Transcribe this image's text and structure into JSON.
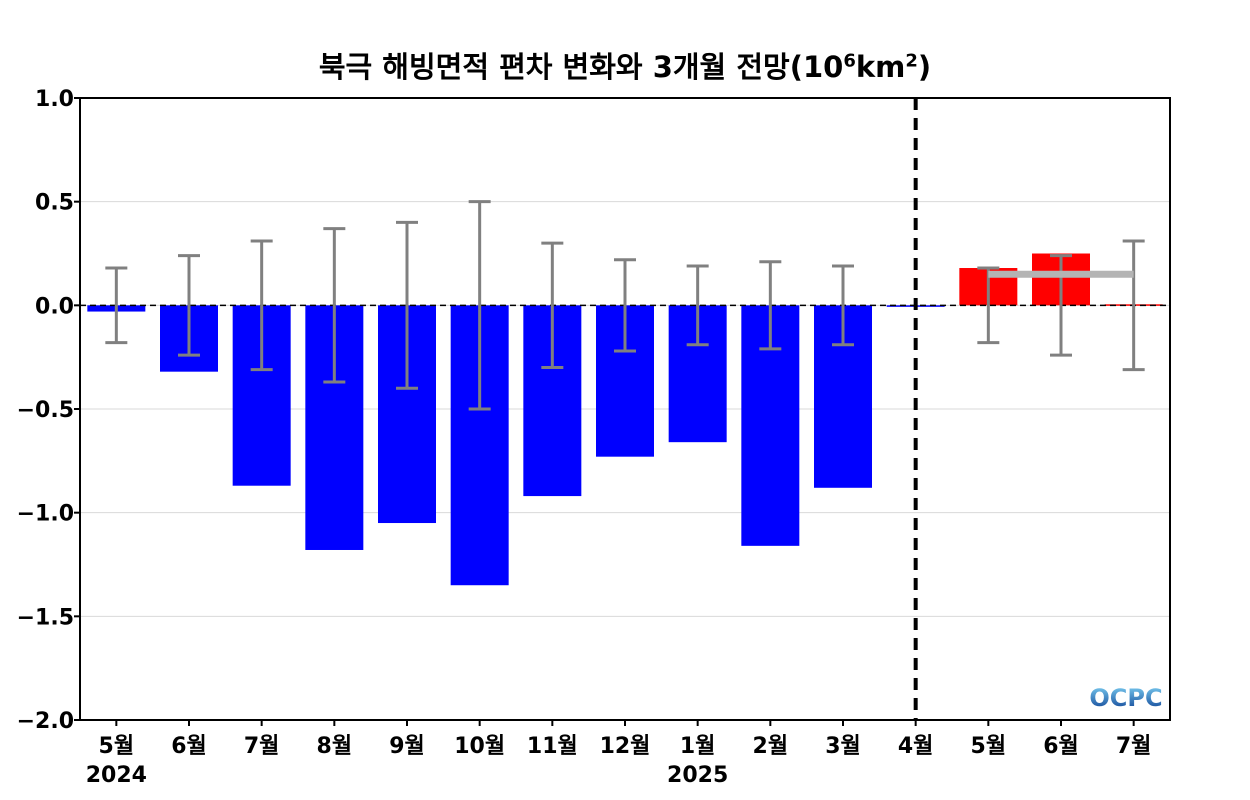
{
  "chart_data": {
    "type": "bar",
    "title": "북극 해빙면적 편차 변화와 3개월 전망(10⁶km²)",
    "title_parts": {
      "main": "북극 해빙면적 편차 변화와 3개월 전망(10",
      "exp1": "6",
      "mid": "km",
      "exp2": "2",
      "end": ")"
    },
    "categories": [
      "5월",
      "6월",
      "7월",
      "8월",
      "9월",
      "10월",
      "11월",
      "12월",
      "1월",
      "2월",
      "3월",
      "4월",
      "5월",
      "6월",
      "7월"
    ],
    "year_labels": [
      {
        "index": 0,
        "text": "2024"
      },
      {
        "index": 8,
        "text": "2025"
      }
    ],
    "series": [
      {
        "values": [
          -0.03,
          -0.32,
          -0.87,
          -1.18,
          -1.05,
          -1.35,
          -0.92,
          -0.73,
          -0.66,
          -1.16,
          -0.88,
          0.0,
          null,
          null,
          null
        ],
        "color": "#0000ff"
      },
      {
        "values": [
          null,
          null,
          null,
          null,
          null,
          null,
          null,
          null,
          null,
          null,
          null,
          null,
          0.18,
          0.25,
          0.005
        ],
        "color": "#ff0000"
      }
    ],
    "error_bars": [
      0.18,
      0.24,
      0.31,
      0.37,
      0.4,
      0.5,
      0.3,
      0.22,
      0.19,
      0.21,
      0.19,
      null,
      0.18,
      0.24,
      0.31
    ],
    "error_bar_color": "#808080",
    "forecast_line": {
      "from_index": 12,
      "to_index": 14,
      "value": 0.15,
      "color": "#b4b4b4"
    },
    "divider_index": 11,
    "ylim": [
      -2.0,
      1.0
    ],
    "yticks": [
      1.0,
      0.5,
      0.0,
      -0.5,
      -1.0,
      -1.5,
      -2.0
    ],
    "ytick_labels": [
      "1.0",
      "0.5",
      "0.0",
      "−0.5",
      "−1.0",
      "−1.5",
      "−2.0"
    ],
    "grid": true,
    "xlabel": "",
    "ylabel": ""
  },
  "logo": {
    "text": "OCPC",
    "color_top": "#7fd3f5",
    "color_bottom": "#0a3d91"
  }
}
